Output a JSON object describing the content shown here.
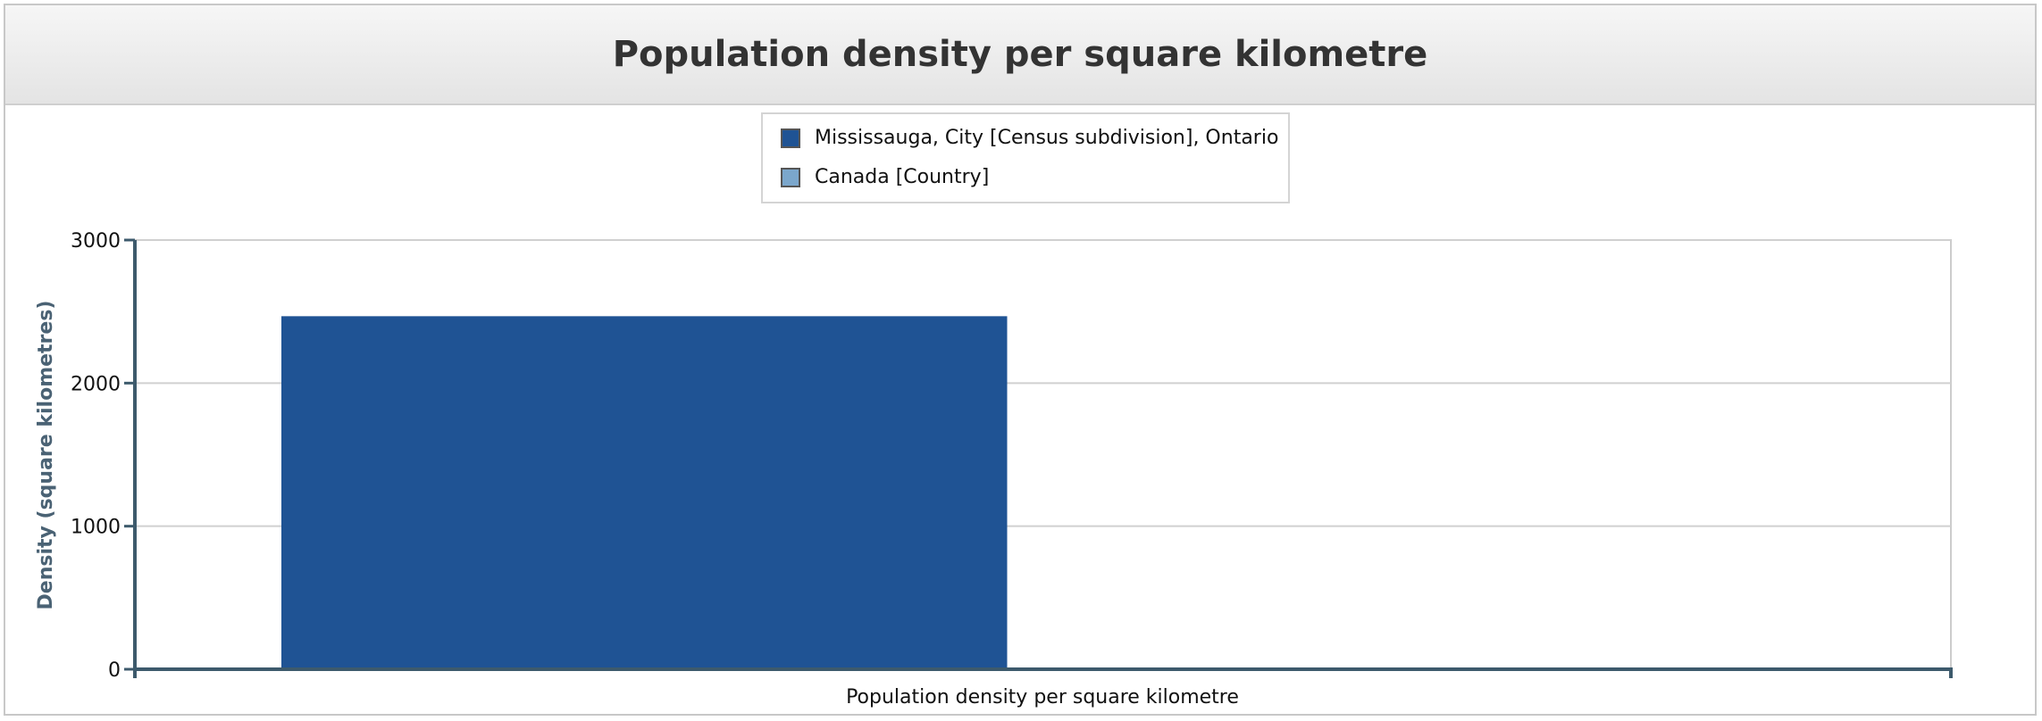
{
  "chart_data": {
    "type": "bar",
    "title": "Population density per square kilometre",
    "xlabel": "Population density per square kilometre",
    "ylabel": "Density (square kilometres)",
    "categories": [
      "Population density per square kilometre"
    ],
    "series": [
      {
        "name": "Mississauga, City [Census subdivision], Ontario",
        "values": [
          2467.6
        ],
        "color": "#1f5394"
      },
      {
        "name": "Canada [Country]",
        "values": [
          4.2
        ],
        "color": "#7ba7cc"
      }
    ],
    "ylim": [
      0,
      3000
    ],
    "yticks": [
      "0",
      "1000",
      "2000",
      "3000"
    ],
    "grid": true,
    "legend_position": "top-center"
  }
}
